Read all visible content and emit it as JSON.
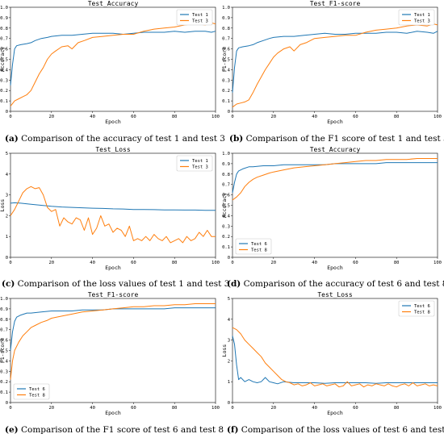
{
  "captions": [
    {
      "letter": "(a)",
      "text": " Comparison of the accuracy of test 1 and test 3"
    },
    {
      "letter": "(b)",
      "text": " Comparison of the F1 score of test 1 and test 3"
    },
    {
      "letter": "(c)",
      "text": " Comparison of the loss values of test 1 and test 3"
    },
    {
      "letter": "(d)",
      "text": " Comparison of the accuracy of test 6 and test 8"
    },
    {
      "letter": "(e)",
      "text": " Comparison of the F1 score of test 6 and test 8"
    },
    {
      "letter": "(f)",
      "text": " Comparison of the loss values of test 6 and test 8"
    }
  ],
  "colors": {
    "series1": "#1f77b4",
    "series2": "#ff7f0e"
  },
  "chart_data": [
    {
      "type": "line",
      "title": "Test_Accuracy",
      "xlabel": "Epoch",
      "ylabel": "Accuracy",
      "xlim": [
        0,
        100
      ],
      "ylim": [
        0,
        1.0
      ],
      "grid": false,
      "legend": "top-right",
      "xticks": [
        "0",
        "20",
        "40",
        "60",
        "80",
        "100"
      ],
      "yticks": [
        "0",
        "0.1",
        "0.2",
        "0.3",
        "0.4",
        "0.5",
        "0.6",
        "0.7",
        "0.8",
        "0.9",
        "1.0"
      ],
      "series": [
        {
          "name": "Test 1",
          "x": [
            0,
            1,
            2,
            3,
            5,
            8,
            10,
            12,
            15,
            18,
            20,
            25,
            30,
            35,
            40,
            45,
            50,
            55,
            60,
            65,
            70,
            75,
            80,
            85,
            90,
            95,
            98,
            100
          ],
          "y": [
            0.25,
            0.45,
            0.6,
            0.63,
            0.64,
            0.65,
            0.66,
            0.68,
            0.7,
            0.71,
            0.72,
            0.73,
            0.73,
            0.74,
            0.75,
            0.75,
            0.75,
            0.74,
            0.75,
            0.76,
            0.76,
            0.76,
            0.77,
            0.76,
            0.77,
            0.77,
            0.76,
            0.77
          ]
        },
        {
          "name": "Test 3",
          "x": [
            0,
            2,
            4,
            6,
            8,
            10,
            12,
            14,
            16,
            18,
            20,
            22,
            25,
            28,
            30,
            33,
            36,
            40,
            45,
            50,
            55,
            60,
            65,
            70,
            75,
            80,
            85,
            90,
            95,
            98,
            100
          ],
          "y": [
            0.05,
            0.1,
            0.12,
            0.14,
            0.16,
            0.2,
            0.28,
            0.36,
            0.42,
            0.5,
            0.55,
            0.58,
            0.62,
            0.63,
            0.6,
            0.66,
            0.68,
            0.71,
            0.72,
            0.73,
            0.74,
            0.74,
            0.77,
            0.79,
            0.8,
            0.81,
            0.83,
            0.84,
            0.83,
            0.85,
            0.84
          ]
        }
      ]
    },
    {
      "type": "line",
      "title": "Test_F1-score",
      "xlabel": "Epoch",
      "ylabel": "F1-score",
      "xlim": [
        0,
        100
      ],
      "ylim": [
        0,
        1.0
      ],
      "grid": false,
      "legend": "top-right",
      "xticks": [
        "0",
        "20",
        "40",
        "60",
        "80",
        "100"
      ],
      "yticks": [
        "0",
        "0.1",
        "0.2",
        "0.3",
        "0.4",
        "0.5",
        "0.6",
        "0.7",
        "0.8",
        "0.9",
        "1.0"
      ],
      "series": [
        {
          "name": "Test 1",
          "x": [
            0,
            1,
            2,
            3,
            5,
            8,
            10,
            12,
            15,
            18,
            20,
            25,
            30,
            35,
            40,
            45,
            50,
            55,
            60,
            65,
            70,
            75,
            80,
            85,
            90,
            95,
            98,
            100
          ],
          "y": [
            0.18,
            0.42,
            0.58,
            0.61,
            0.62,
            0.63,
            0.64,
            0.66,
            0.68,
            0.7,
            0.71,
            0.72,
            0.72,
            0.73,
            0.74,
            0.75,
            0.74,
            0.74,
            0.75,
            0.75,
            0.75,
            0.76,
            0.76,
            0.75,
            0.77,
            0.76,
            0.75,
            0.77
          ]
        },
        {
          "name": "Test 3",
          "x": [
            0,
            2,
            4,
            6,
            8,
            10,
            12,
            14,
            16,
            18,
            20,
            22,
            25,
            28,
            30,
            33,
            36,
            40,
            45,
            50,
            55,
            60,
            65,
            70,
            75,
            80,
            85,
            90,
            95,
            98,
            100
          ],
          "y": [
            0.04,
            0.07,
            0.08,
            0.09,
            0.11,
            0.18,
            0.26,
            0.33,
            0.4,
            0.46,
            0.52,
            0.56,
            0.6,
            0.62,
            0.58,
            0.64,
            0.66,
            0.7,
            0.71,
            0.72,
            0.73,
            0.73,
            0.76,
            0.78,
            0.79,
            0.8,
            0.82,
            0.83,
            0.82,
            0.84,
            0.83
          ]
        }
      ]
    },
    {
      "type": "line",
      "title": "Test_Loss",
      "xlabel": "Epoch",
      "ylabel": "Loss",
      "xlim": [
        0,
        100
      ],
      "ylim": [
        0,
        5
      ],
      "grid": false,
      "legend": "top-right",
      "xticks": [
        "0",
        "20",
        "40",
        "60",
        "80",
        "100"
      ],
      "yticks": [
        "0",
        "1",
        "2",
        "3",
        "4",
        "5"
      ],
      "series": [
        {
          "name": "Test 1",
          "x": [
            0,
            2,
            5,
            10,
            15,
            20,
            25,
            30,
            35,
            40,
            45,
            50,
            55,
            60,
            65,
            70,
            75,
            80,
            85,
            90,
            95,
            100
          ],
          "y": [
            2.6,
            2.62,
            2.6,
            2.55,
            2.5,
            2.45,
            2.42,
            2.4,
            2.38,
            2.36,
            2.35,
            2.33,
            2.32,
            2.3,
            2.3,
            2.29,
            2.28,
            2.28,
            2.27,
            2.27,
            2.26,
            2.26
          ]
        },
        {
          "name": "Test 3",
          "x": [
            0,
            2,
            4,
            6,
            8,
            10,
            12,
            14,
            16,
            18,
            20,
            22,
            24,
            26,
            28,
            30,
            32,
            34,
            36,
            38,
            40,
            42,
            44,
            46,
            48,
            50,
            52,
            54,
            56,
            58,
            60,
            62,
            64,
            66,
            68,
            70,
            72,
            74,
            76,
            78,
            80,
            82,
            84,
            86,
            88,
            90,
            92,
            94,
            96,
            98,
            100
          ],
          "y": [
            2.0,
            2.3,
            2.7,
            3.1,
            3.3,
            3.4,
            3.3,
            3.35,
            3.0,
            2.4,
            2.2,
            2.3,
            1.5,
            1.9,
            1.7,
            1.6,
            1.9,
            1.8,
            1.3,
            1.9,
            1.1,
            1.4,
            2.0,
            1.5,
            1.6,
            1.2,
            1.4,
            1.3,
            1.0,
            1.5,
            0.8,
            0.9,
            0.8,
            1.0,
            0.8,
            1.1,
            0.9,
            0.8,
            1.0,
            0.7,
            0.8,
            0.9,
            0.7,
            1.0,
            0.8,
            0.9,
            1.2,
            1.0,
            1.3,
            1.0,
            1.0
          ]
        }
      ]
    },
    {
      "type": "line",
      "title": "Test_Accuracy",
      "xlabel": "Epoch",
      "ylabel": "Accuracy",
      "xlim": [
        0,
        100
      ],
      "ylim": [
        0,
        1.0
      ],
      "grid": false,
      "legend": "bottom-left",
      "xticks": [
        "0",
        "20",
        "40",
        "60",
        "80",
        "100"
      ],
      "yticks": [
        "0",
        "0.1",
        "0.2",
        "0.3",
        "0.4",
        "0.5",
        "0.6",
        "0.7",
        "0.8",
        "0.9",
        "1.0"
      ],
      "series": [
        {
          "name": "Test 6",
          "x": [
            0,
            1,
            2,
            3,
            5,
            8,
            10,
            15,
            20,
            25,
            30,
            35,
            40,
            45,
            50,
            55,
            60,
            65,
            70,
            75,
            80,
            85,
            90,
            95,
            100
          ],
          "y": [
            0.62,
            0.72,
            0.8,
            0.83,
            0.85,
            0.87,
            0.87,
            0.88,
            0.88,
            0.89,
            0.89,
            0.89,
            0.89,
            0.89,
            0.9,
            0.9,
            0.9,
            0.9,
            0.9,
            0.91,
            0.91,
            0.91,
            0.91,
            0.91,
            0.91
          ]
        },
        {
          "name": "Test 8",
          "x": [
            0,
            2,
            4,
            6,
            8,
            10,
            12,
            15,
            18,
            20,
            25,
            30,
            35,
            40,
            45,
            50,
            55,
            60,
            65,
            70,
            75,
            80,
            85,
            90,
            95,
            100
          ],
          "y": [
            0.55,
            0.58,
            0.62,
            0.68,
            0.72,
            0.75,
            0.77,
            0.79,
            0.81,
            0.82,
            0.84,
            0.86,
            0.87,
            0.88,
            0.89,
            0.9,
            0.91,
            0.92,
            0.93,
            0.93,
            0.94,
            0.94,
            0.94,
            0.95,
            0.95,
            0.95
          ]
        }
      ]
    },
    {
      "type": "line",
      "title": "Test_F1-score",
      "xlabel": "Epoch",
      "ylabel": "F1-score",
      "xlim": [
        0,
        100
      ],
      "ylim": [
        0,
        1.0
      ],
      "grid": false,
      "legend": "bottom-left",
      "xticks": [
        "0",
        "20",
        "40",
        "60",
        "80",
        "100"
      ],
      "yticks": [
        "0",
        "0.1",
        "0.2",
        "0.3",
        "0.4",
        "0.5",
        "0.6",
        "0.7",
        "0.8",
        "0.9",
        "1.0"
      ],
      "series": [
        {
          "name": "Test 6",
          "x": [
            0,
            1,
            2,
            3,
            5,
            8,
            10,
            15,
            20,
            25,
            30,
            35,
            40,
            45,
            50,
            55,
            60,
            65,
            70,
            75,
            80,
            85,
            90,
            95,
            100
          ],
          "y": [
            0.5,
            0.68,
            0.78,
            0.82,
            0.84,
            0.86,
            0.86,
            0.87,
            0.88,
            0.88,
            0.88,
            0.89,
            0.89,
            0.89,
            0.9,
            0.9,
            0.9,
            0.9,
            0.9,
            0.9,
            0.91,
            0.91,
            0.91,
            0.91,
            0.91
          ]
        },
        {
          "name": "Test 8",
          "x": [
            0,
            1,
            2,
            4,
            6,
            8,
            10,
            12,
            15,
            18,
            20,
            25,
            30,
            35,
            40,
            45,
            50,
            55,
            60,
            65,
            70,
            75,
            80,
            85,
            90,
            95,
            100
          ],
          "y": [
            0.22,
            0.4,
            0.5,
            0.58,
            0.64,
            0.68,
            0.72,
            0.74,
            0.77,
            0.79,
            0.81,
            0.83,
            0.85,
            0.87,
            0.88,
            0.89,
            0.9,
            0.91,
            0.92,
            0.92,
            0.93,
            0.93,
            0.94,
            0.94,
            0.95,
            0.95,
            0.95
          ]
        }
      ]
    },
    {
      "type": "line",
      "title": "Test_Loss",
      "xlabel": "Epoch",
      "ylabel": "Loss",
      "xlim": [
        0,
        100
      ],
      "ylim": [
        0,
        5
      ],
      "grid": false,
      "legend": "top-right",
      "xticks": [
        "0",
        "20",
        "40",
        "60",
        "80",
        "100"
      ],
      "yticks": [
        "0",
        "1",
        "2",
        "3",
        "4",
        "5"
      ],
      "series": [
        {
          "name": "Test 6",
          "x": [
            0,
            1,
            2,
            3,
            4,
            6,
            8,
            10,
            12,
            14,
            16,
            18,
            20,
            22,
            25,
            30,
            35,
            40,
            45,
            50,
            55,
            60,
            65,
            70,
            75,
            80,
            85,
            90,
            95,
            100
          ],
          "y": [
            3.2,
            2.8,
            1.8,
            1.1,
            1.2,
            1.0,
            1.1,
            1.0,
            0.95,
            1.0,
            1.2,
            1.0,
            0.95,
            0.9,
            1.0,
            0.95,
            0.95,
            0.95,
            0.92,
            0.95,
            0.95,
            0.95,
            0.95,
            0.92,
            0.95,
            0.95,
            0.95,
            0.95,
            0.95,
            0.95
          ]
        },
        {
          "name": "Test 8",
          "x": [
            0,
            2,
            4,
            6,
            8,
            10,
            12,
            14,
            16,
            18,
            20,
            22,
            24,
            26,
            28,
            30,
            32,
            34,
            36,
            38,
            40,
            42,
            44,
            46,
            48,
            50,
            52,
            54,
            56,
            58,
            60,
            62,
            64,
            66,
            68,
            70,
            72,
            74,
            76,
            78,
            80,
            82,
            84,
            86,
            88,
            90,
            92,
            94,
            96,
            98,
            100
          ],
          "y": [
            3.6,
            3.5,
            3.3,
            3.0,
            2.8,
            2.6,
            2.4,
            2.2,
            1.9,
            1.7,
            1.5,
            1.3,
            1.1,
            1.0,
            0.95,
            0.85,
            0.9,
            0.8,
            0.85,
            0.95,
            0.8,
            0.85,
            0.9,
            0.8,
            0.85,
            0.9,
            0.75,
            0.8,
            1.0,
            0.8,
            0.85,
            0.9,
            0.75,
            0.85,
            0.8,
            0.9,
            0.85,
            0.8,
            0.9,
            0.8,
            0.75,
            0.85,
            0.9,
            0.8,
            0.95,
            0.8,
            0.85,
            0.9,
            0.8,
            0.85,
            0.8
          ]
        }
      ]
    }
  ]
}
